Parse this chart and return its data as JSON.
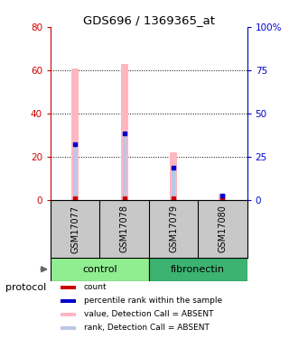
{
  "title": "GDS696 / 1369365_at",
  "samples": [
    "GSM17077",
    "GSM17078",
    "GSM17079",
    "GSM17080"
  ],
  "groups": [
    "control",
    "control",
    "fibronectin",
    "fibronectin"
  ],
  "group_colors": {
    "control": "#90EE90",
    "fibronectin": "#3CB371"
  },
  "bar_color_absent": "#FFB6C1",
  "rank_color_absent": "#B8C8E8",
  "dot_color_red": "#CC0000",
  "dot_color_blue": "#0000CC",
  "value_absent": [
    61,
    63,
    22,
    3
  ],
  "rank_absent": [
    26,
    31,
    15,
    2
  ],
  "left_ylim": [
    0,
    80
  ],
  "right_ylim": [
    0,
    100
  ],
  "left_yticks": [
    0,
    20,
    40,
    60,
    80
  ],
  "right_yticks": [
    0,
    25,
    50,
    75,
    100
  ],
  "right_yticklabels": [
    "0",
    "25",
    "50",
    "75",
    "100%"
  ],
  "left_ycolor": "#CC0000",
  "right_ycolor": "#0000CC",
  "grid_color": "#000000",
  "sample_box_color": "#C8C8C8",
  "bg_color": "#FFFFFF",
  "protocol_label": "protocol",
  "legend_items": [
    {
      "color": "#CC0000",
      "label": "count"
    },
    {
      "color": "#0000CC",
      "label": "percentile rank within the sample"
    },
    {
      "color": "#FFB6C1",
      "label": "value, Detection Call = ABSENT"
    },
    {
      "color": "#B8C8E8",
      "label": "rank, Detection Call = ABSENT"
    }
  ]
}
